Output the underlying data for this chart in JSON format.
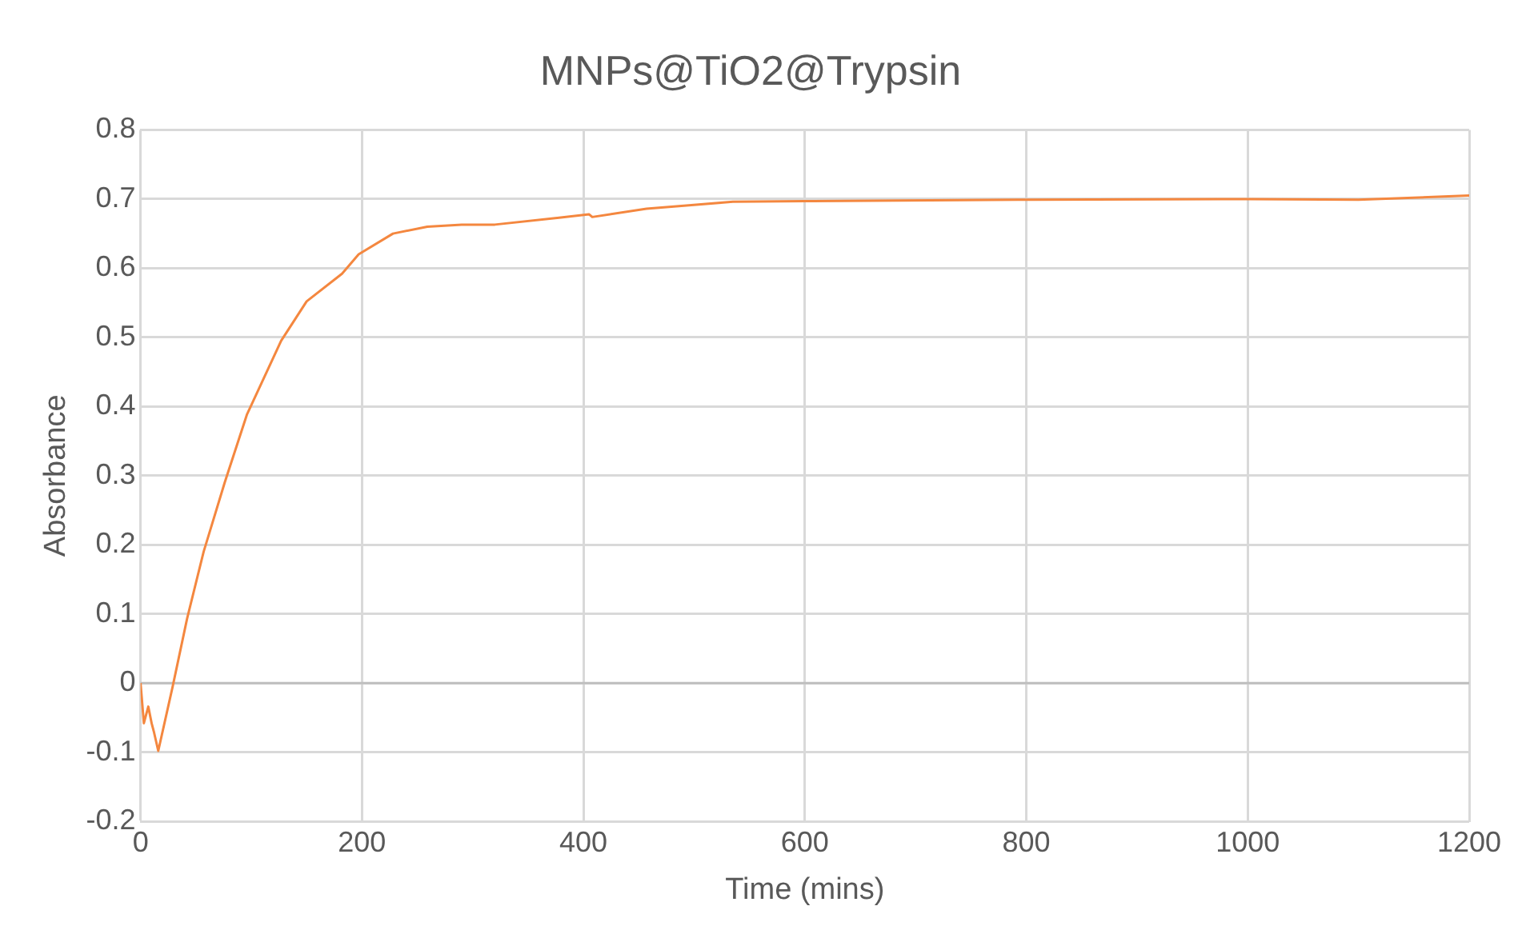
{
  "chart_data": {
    "type": "line",
    "title": "MNPs@TiO2@Trypsin",
    "xlabel": "Time (mins)",
    "ylabel": "Absorbance",
    "x": [
      0,
      3,
      7,
      10,
      12,
      16,
      29,
      42,
      57,
      76,
      96,
      127,
      150,
      182,
      197,
      228,
      259,
      290,
      320,
      378,
      405,
      408,
      457,
      535,
      600,
      804,
      1002,
      1100,
      1200
    ],
    "series": [
      {
        "color": "#f4873f",
        "values": [
          0,
          -0.058,
          -0.034,
          -0.058,
          -0.07,
          -0.098,
          -0.005,
          0.093,
          0.19,
          0.29,
          0.388,
          0.495,
          0.552,
          0.592,
          0.62,
          0.65,
          0.66,
          0.663,
          0.663,
          0.673,
          0.678,
          0.674,
          0.686,
          0.696,
          0.697,
          0.699,
          0.7,
          0.699,
          0.705
        ]
      }
    ],
    "xlim": [
      0,
      1200
    ],
    "xticks": [
      0,
      200,
      400,
      600,
      800,
      1000,
      1200
    ],
    "ylim": [
      -0.2,
      0.8
    ],
    "yticks": [
      -0.2,
      -0.1,
      0,
      0.1,
      0.2,
      0.3,
      0.4,
      0.5,
      0.6,
      0.7,
      0.8
    ],
    "grid": true,
    "legend": false,
    "marker": "none",
    "line_style": "solid"
  }
}
